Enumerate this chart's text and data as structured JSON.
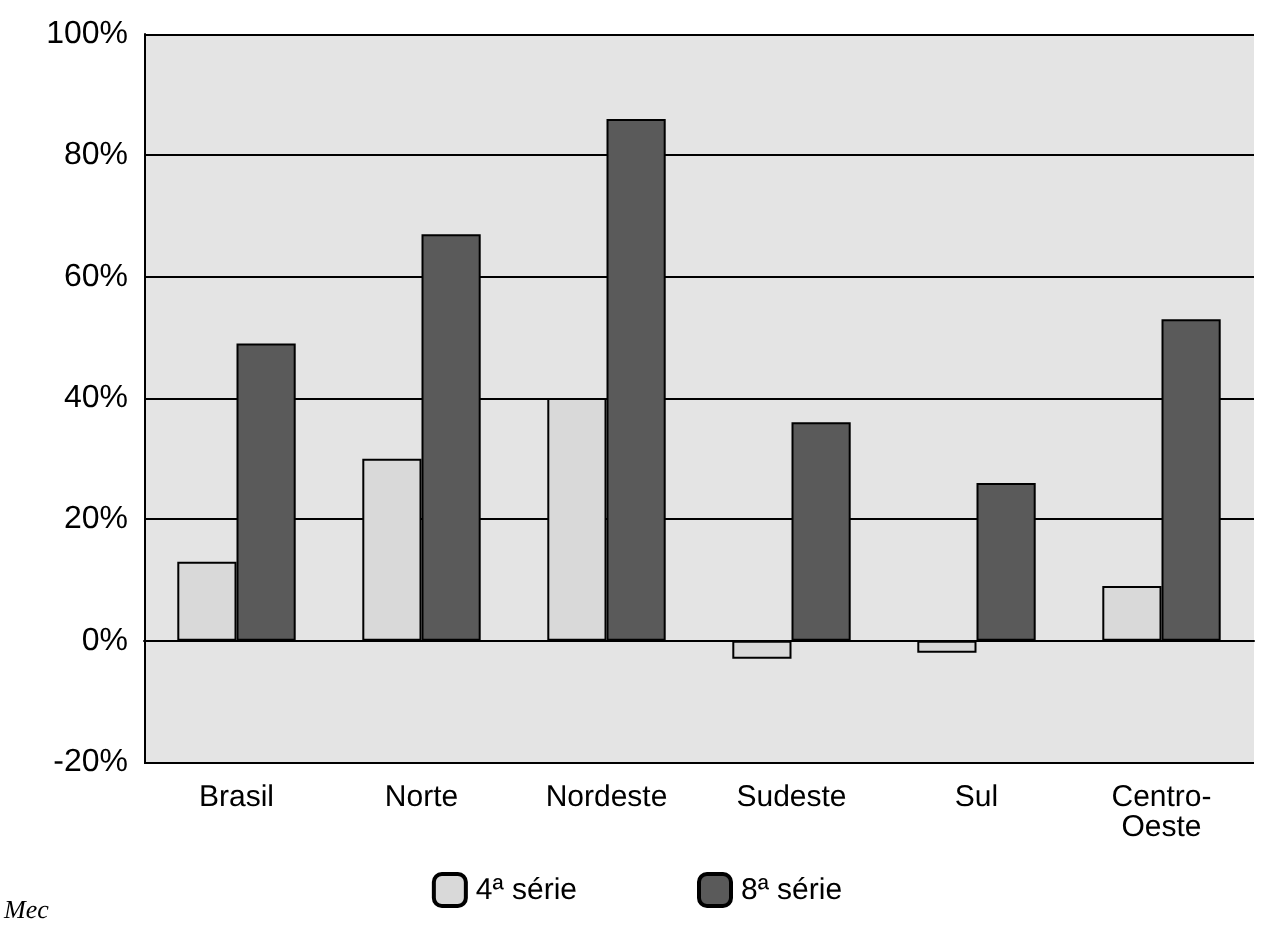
{
  "chart_data": {
    "type": "bar",
    "categories": [
      "Brasil",
      "Norte",
      "Nordeste",
      "Sudeste",
      "Sul",
      "Centro-Oeste"
    ],
    "series": [
      {
        "name": "4ª série",
        "color": "#d9d9d9",
        "values": [
          13,
          30,
          40,
          -3,
          -2,
          9
        ]
      },
      {
        "name": "8ª série",
        "color": "#5a5a5a",
        "values": [
          49,
          67,
          86,
          36,
          26,
          53
        ]
      }
    ],
    "ylim": [
      -20,
      100
    ],
    "yticks": [
      {
        "value": -20,
        "label": "-20%"
      },
      {
        "value": 0,
        "label": "0%"
      },
      {
        "value": 20,
        "label": "20%"
      },
      {
        "value": 40,
        "label": "40%"
      },
      {
        "value": 60,
        "label": "60%"
      },
      {
        "value": 80,
        "label": "80%"
      },
      {
        "value": 100,
        "label": "100%"
      }
    ],
    "grid": "y",
    "legend": "bottom",
    "annotations": [
      "Mec"
    ]
  }
}
